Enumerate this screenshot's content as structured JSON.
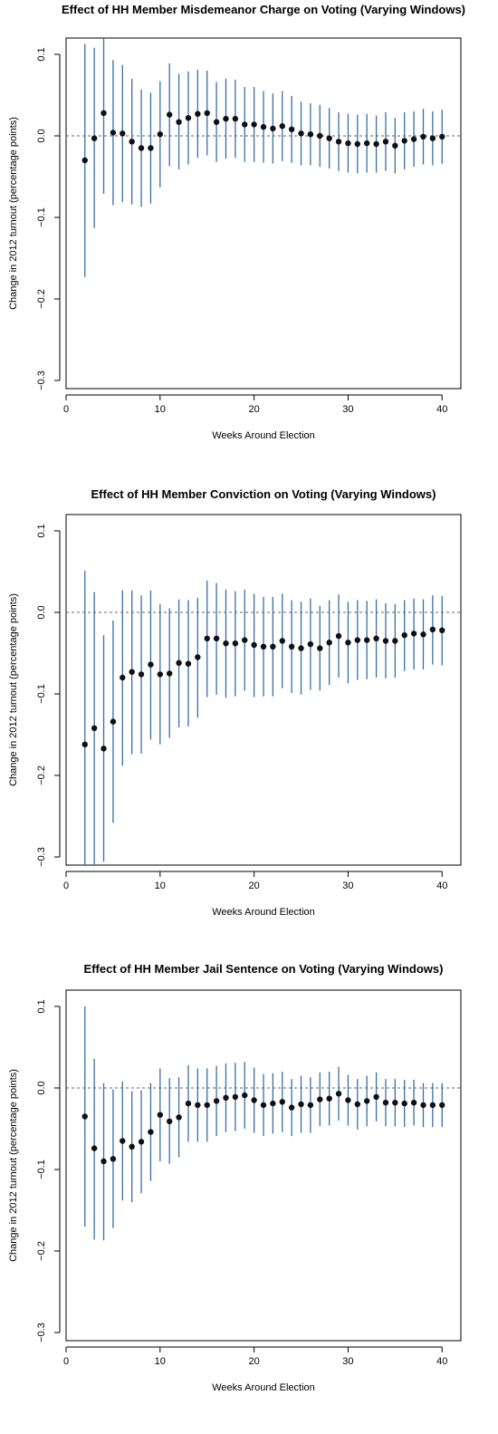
{
  "colors": {
    "errorbar": "#3a6ea5",
    "point": "#111111",
    "zero_line": "#666666",
    "axis": "#000000"
  },
  "chart_data": [
    {
      "type": "scatter",
      "title": "Effect of HH Member Misdemeanor Charge on Voting (Varying Windows)",
      "xlabel": "Weeks Around Election",
      "ylabel": "Change in 2012 turnout (percentage points)",
      "xlim": [
        0,
        42
      ],
      "ylim": [
        -0.31,
        0.12
      ],
      "xticks": [
        0,
        10,
        20,
        30,
        40
      ],
      "yticks": [
        -0.3,
        -0.2,
        -0.1,
        0.0,
        0.1
      ],
      "xtick_labels": [
        "0",
        "10",
        "20",
        "30",
        "40"
      ],
      "ytick_labels": [
        "−0.3",
        "−0.2",
        "−0.1",
        "0.0",
        "0.1"
      ],
      "reference_line": 0,
      "x": [
        2,
        3,
        4,
        5,
        6,
        7,
        8,
        9,
        10,
        11,
        12,
        13,
        14,
        15,
        16,
        17,
        18,
        19,
        20,
        21,
        22,
        23,
        24,
        25,
        26,
        27,
        28,
        29,
        30,
        31,
        32,
        33,
        34,
        35,
        36,
        37,
        38,
        39,
        40
      ],
      "estimate": [
        -0.03,
        -0.003,
        0.028,
        0.004,
        0.003,
        -0.007,
        -0.015,
        -0.015,
        0.002,
        0.026,
        0.017,
        0.022,
        0.027,
        0.028,
        0.017,
        0.021,
        0.021,
        0.014,
        0.014,
        0.011,
        0.009,
        0.012,
        0.008,
        0.003,
        0.002,
        0.0,
        -0.003,
        -0.007,
        -0.009,
        -0.01,
        -0.009,
        -0.01,
        -0.007,
        -0.012,
        -0.006,
        -0.004,
        -0.001,
        -0.003,
        -0.001
      ],
      "ci_low": [
        -0.173,
        -0.113,
        -0.071,
        -0.085,
        -0.081,
        -0.084,
        -0.087,
        -0.083,
        -0.063,
        -0.037,
        -0.041,
        -0.035,
        -0.027,
        -0.024,
        -0.032,
        -0.028,
        -0.027,
        -0.032,
        -0.032,
        -0.033,
        -0.034,
        -0.031,
        -0.033,
        -0.036,
        -0.036,
        -0.038,
        -0.04,
        -0.043,
        -0.045,
        -0.046,
        -0.045,
        -0.045,
        -0.043,
        -0.046,
        -0.041,
        -0.038,
        -0.035,
        -0.036,
        -0.034
      ],
      "ci_high": [
        0.113,
        0.108,
        0.127,
        0.093,
        0.087,
        0.07,
        0.057,
        0.053,
        0.067,
        0.089,
        0.076,
        0.079,
        0.081,
        0.08,
        0.066,
        0.07,
        0.069,
        0.06,
        0.06,
        0.055,
        0.052,
        0.055,
        0.049,
        0.042,
        0.04,
        0.038,
        0.034,
        0.029,
        0.027,
        0.026,
        0.027,
        0.025,
        0.029,
        0.022,
        0.029,
        0.03,
        0.033,
        0.03,
        0.032
      ]
    },
    {
      "type": "scatter",
      "title": "Effect of HH Member Conviction on Voting (Varying Windows)",
      "xlabel": "Weeks Around Election",
      "ylabel": "Change in 2012 turnout (percentage points)",
      "xlim": [
        0,
        42
      ],
      "ylim": [
        -0.31,
        0.12
      ],
      "xticks": [
        0,
        10,
        20,
        30,
        40
      ],
      "yticks": [
        -0.3,
        -0.2,
        -0.1,
        0.0,
        0.1
      ],
      "xtick_labels": [
        "0",
        "10",
        "20",
        "30",
        "40"
      ],
      "ytick_labels": [
        "−0.3",
        "−0.2",
        "−0.1",
        "0.0",
        "0.1"
      ],
      "reference_line": 0,
      "x": [
        2,
        3,
        4,
        5,
        6,
        7,
        8,
        9,
        10,
        11,
        12,
        13,
        14,
        15,
        16,
        17,
        18,
        19,
        20,
        21,
        22,
        23,
        24,
        25,
        26,
        27,
        28,
        29,
        30,
        31,
        32,
        33,
        34,
        35,
        36,
        37,
        38,
        39,
        40
      ],
      "estimate": [
        -0.162,
        -0.142,
        -0.167,
        -0.134,
        -0.08,
        -0.073,
        -0.076,
        -0.064,
        -0.076,
        -0.075,
        -0.062,
        -0.063,
        -0.055,
        -0.032,
        -0.032,
        -0.038,
        -0.038,
        -0.034,
        -0.04,
        -0.042,
        -0.042,
        -0.035,
        -0.042,
        -0.044,
        -0.039,
        -0.044,
        -0.037,
        -0.029,
        -0.037,
        -0.034,
        -0.034,
        -0.032,
        -0.035,
        -0.035,
        -0.028,
        -0.026,
        -0.027,
        -0.021,
        -0.022
      ],
      "ci_low": [
        -0.31,
        -0.309,
        -0.306,
        -0.258,
        -0.188,
        -0.174,
        -0.173,
        -0.156,
        -0.162,
        -0.154,
        -0.141,
        -0.14,
        -0.129,
        -0.104,
        -0.101,
        -0.105,
        -0.103,
        -0.096,
        -0.104,
        -0.103,
        -0.103,
        -0.093,
        -0.099,
        -0.101,
        -0.095,
        -0.096,
        -0.089,
        -0.08,
        -0.087,
        -0.083,
        -0.082,
        -0.08,
        -0.081,
        -0.08,
        -0.072,
        -0.07,
        -0.07,
        -0.064,
        -0.065
      ],
      "ci_high": [
        0.051,
        0.025,
        -0.028,
        -0.01,
        0.027,
        0.027,
        0.021,
        0.027,
        0.01,
        0.005,
        0.016,
        0.015,
        0.018,
        0.039,
        0.036,
        0.028,
        0.026,
        0.028,
        0.023,
        0.019,
        0.019,
        0.023,
        0.015,
        0.013,
        0.017,
        0.008,
        0.015,
        0.022,
        0.013,
        0.015,
        0.014,
        0.016,
        0.011,
        0.01,
        0.015,
        0.017,
        0.016,
        0.021,
        0.02
      ]
    },
    {
      "type": "scatter",
      "title": "Effect of HH Member Jail Sentence on Voting (Varying Windows)",
      "xlabel": "Weeks Around Election",
      "ylabel": "Change in 2012 turnout (percentage points)",
      "xlim": [
        0,
        42
      ],
      "ylim": [
        -0.31,
        0.12
      ],
      "xticks": [
        0,
        10,
        20,
        30,
        40
      ],
      "yticks": [
        -0.3,
        -0.2,
        -0.1,
        0.0,
        0.1
      ],
      "xtick_labels": [
        "0",
        "10",
        "20",
        "30",
        "40"
      ],
      "ytick_labels": [
        "−0.3",
        "−0.2",
        "−0.1",
        "0.0",
        "0.1"
      ],
      "reference_line": 0,
      "x": [
        2,
        3,
        4,
        5,
        6,
        7,
        8,
        9,
        10,
        11,
        12,
        13,
        14,
        15,
        16,
        17,
        18,
        19,
        20,
        21,
        22,
        23,
        24,
        25,
        26,
        27,
        28,
        29,
        30,
        31,
        32,
        33,
        34,
        35,
        36,
        37,
        38,
        39,
        40
      ],
      "estimate": [
        -0.035,
        -0.074,
        -0.09,
        -0.087,
        -0.065,
        -0.072,
        -0.066,
        -0.054,
        -0.033,
        -0.041,
        -0.036,
        -0.019,
        -0.021,
        -0.021,
        -0.016,
        -0.012,
        -0.011,
        -0.009,
        -0.015,
        -0.021,
        -0.019,
        -0.017,
        -0.024,
        -0.02,
        -0.021,
        -0.014,
        -0.013,
        -0.007,
        -0.015,
        -0.02,
        -0.016,
        -0.011,
        -0.018,
        -0.018,
        -0.019,
        -0.018,
        -0.021,
        -0.021,
        -0.021
      ],
      "ci_low": [
        -0.17,
        -0.186,
        -0.187,
        -0.172,
        -0.138,
        -0.14,
        -0.129,
        -0.114,
        -0.09,
        -0.093,
        -0.085,
        -0.066,
        -0.066,
        -0.066,
        -0.059,
        -0.054,
        -0.053,
        -0.05,
        -0.055,
        -0.059,
        -0.056,
        -0.054,
        -0.059,
        -0.055,
        -0.055,
        -0.047,
        -0.046,
        -0.04,
        -0.046,
        -0.051,
        -0.047,
        -0.041,
        -0.047,
        -0.047,
        -0.048,
        -0.046,
        -0.048,
        -0.048,
        -0.048
      ],
      "ci_high": [
        0.1,
        0.036,
        0.006,
        -0.002,
        0.008,
        -0.004,
        -0.003,
        0.006,
        0.024,
        0.012,
        0.013,
        0.028,
        0.024,
        0.024,
        0.027,
        0.03,
        0.031,
        0.032,
        0.025,
        0.017,
        0.018,
        0.02,
        0.011,
        0.015,
        0.013,
        0.019,
        0.02,
        0.026,
        0.016,
        0.011,
        0.015,
        0.019,
        0.011,
        0.011,
        0.01,
        0.01,
        0.006,
        0.006,
        0.006
      ]
    }
  ]
}
